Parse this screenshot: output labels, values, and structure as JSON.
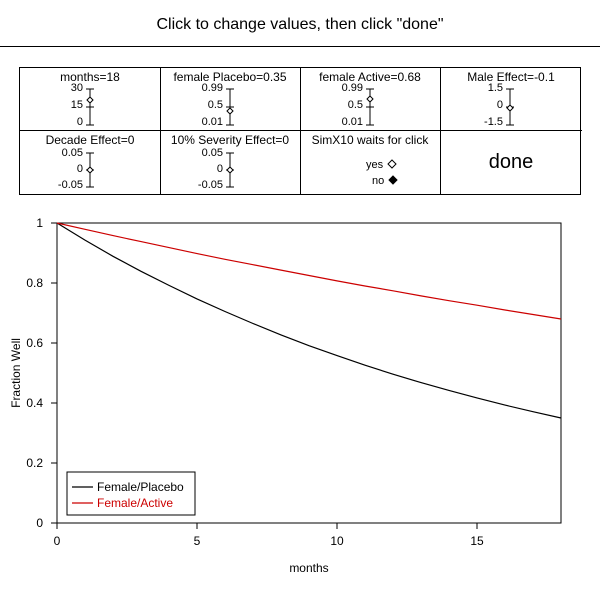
{
  "header": {
    "instruction": "Click to change values, then click \"done\""
  },
  "controls": {
    "months": {
      "label": "months=18",
      "top": "30",
      "mid": "15",
      "bottom": "0",
      "value": 18,
      "min": 0,
      "max": 30
    },
    "female_placebo": {
      "label": "female Placebo=0.35",
      "top": "0.99",
      "mid": "0.5",
      "bottom": "0.01",
      "value": 0.35,
      "min": 0.01,
      "max": 0.99
    },
    "female_active": {
      "label": "female Active=0.68",
      "top": "0.99",
      "mid": "0.5",
      "bottom": "0.01",
      "value": 0.68,
      "min": 0.01,
      "max": 0.99
    },
    "male_effect": {
      "label": "Male Effect=-0.1",
      "top": "1.5",
      "mid": "0",
      "bottom": "-1.5",
      "value": -0.1,
      "min": -1.5,
      "max": 1.5
    },
    "decade_effect": {
      "label": "Decade Effect=0",
      "top": "0.05",
      "mid": "0",
      "bottom": "-0.05",
      "value": 0,
      "min": -0.05,
      "max": 0.05
    },
    "severity_effect": {
      "label": "10% Severity Effect=0",
      "top": "0.05",
      "mid": "0",
      "bottom": "-0.05",
      "value": 0,
      "min": -0.05,
      "max": 0.05
    },
    "simx10": {
      "label": "SimX10 waits for click",
      "yes": "yes",
      "no": "no",
      "selected": "no"
    },
    "done_label": "done"
  },
  "chart_data": {
    "type": "line",
    "xlabel": "months",
    "ylabel": "Fraction Well",
    "xlim": [
      0,
      18
    ],
    "ylim": [
      0,
      1
    ],
    "x_ticks": [
      "0",
      "5",
      "10",
      "15"
    ],
    "y_ticks": [
      "0",
      "0.2",
      "0.4",
      "0.6",
      "0.8",
      "1"
    ],
    "legend_position": "bottom-left",
    "x": [
      0,
      1,
      2,
      3,
      4,
      5,
      6,
      7,
      8,
      9,
      10,
      11,
      12,
      13,
      14,
      15,
      16,
      17,
      18
    ],
    "series": [
      {
        "name": "Female/Placebo",
        "color": "#000000",
        "values": [
          1.0,
          0.943,
          0.889,
          0.839,
          0.792,
          0.747,
          0.705,
          0.665,
          0.627,
          0.591,
          0.558,
          0.526,
          0.496,
          0.468,
          0.442,
          0.417,
          0.393,
          0.371,
          0.35
        ]
      },
      {
        "name": "Female/Active",
        "color": "#cc0000",
        "values": [
          1.0,
          0.979,
          0.958,
          0.938,
          0.918,
          0.898,
          0.879,
          0.861,
          0.843,
          0.825,
          0.807,
          0.79,
          0.774,
          0.757,
          0.741,
          0.726,
          0.71,
          0.695,
          0.68
        ]
      }
    ]
  }
}
